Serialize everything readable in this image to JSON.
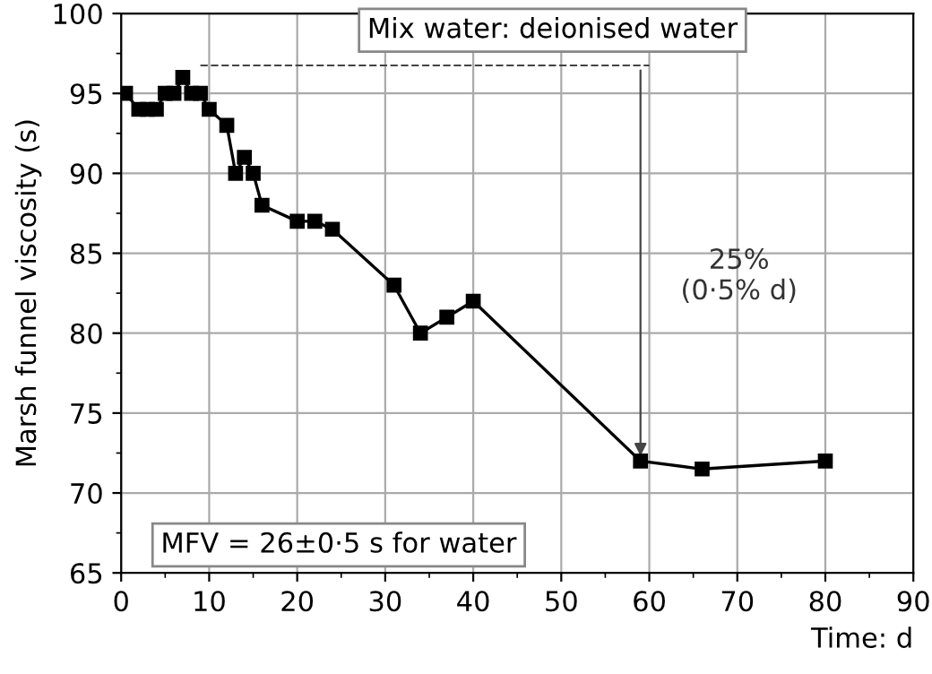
{
  "chart_data": {
    "type": "line",
    "xlabel": "Time: d",
    "ylabel": "Marsh funnel viscosity (s)",
    "x": [
      0.5,
      2,
      3,
      4,
      5,
      6,
      7,
      8,
      9,
      10,
      12,
      13,
      14,
      15,
      16,
      20,
      22,
      24,
      31,
      34,
      37,
      40,
      59,
      66,
      80
    ],
    "values": [
      95,
      94,
      94,
      94,
      95,
      95,
      96,
      95,
      95,
      94,
      93,
      90,
      91,
      90,
      88,
      87,
      87,
      86.5,
      83,
      80,
      81,
      82,
      72,
      71.5,
      72
    ],
    "color": "#000000",
    "marker": "square",
    "line_style": "solid",
    "xlim": [
      0,
      90
    ],
    "xticks": [
      0,
      10,
      20,
      30,
      40,
      50,
      60,
      70,
      80,
      90
    ],
    "ylim": [
      65,
      100
    ],
    "yticks": [
      65,
      70,
      75,
      80,
      85,
      90,
      95,
      100
    ],
    "grid": true,
    "annotations": [
      {
        "text": "Mix water: deionised water",
        "x": 59,
        "y": 72
      },
      "25%\n(0·5% d)",
      "MFV = 26±0·5 s for water"
    ]
  }
}
